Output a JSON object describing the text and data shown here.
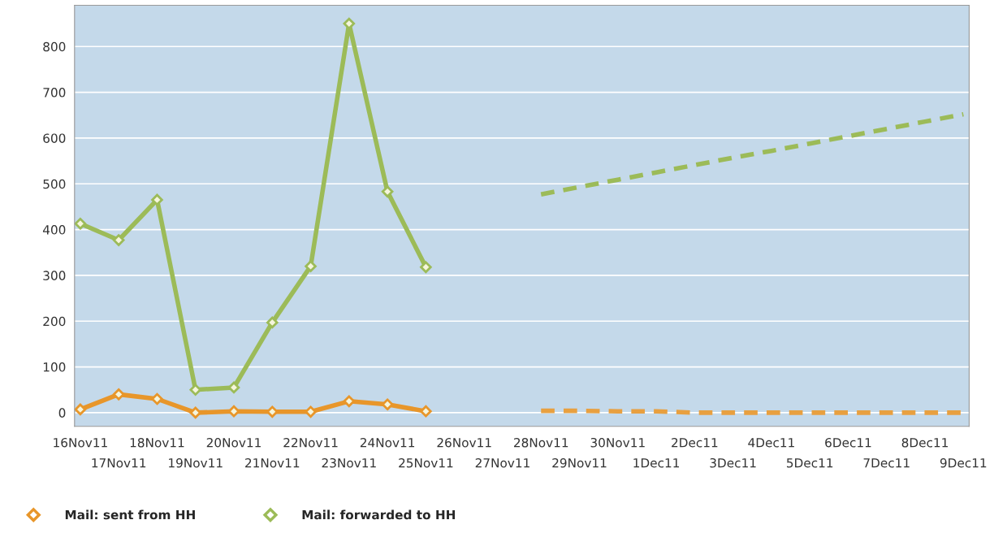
{
  "chart_data": {
    "type": "line",
    "categories": [
      "16Nov11",
      "17Nov11",
      "18Nov11",
      "19Nov11",
      "20Nov11",
      "21Nov11",
      "22Nov11",
      "23Nov11",
      "24Nov11",
      "25Nov11",
      "26Nov11",
      "27Nov11",
      "28Nov11",
      "29Nov11",
      "30Nov11",
      "1Dec11",
      "2Dec11",
      "3Dec11",
      "4Dec11",
      "5Dec11",
      "6Dec11",
      "7Dec11",
      "8Dec11",
      "9Dec11"
    ],
    "series": [
      {
        "name": "Mail: sent from HH",
        "color": "#e8962a",
        "marker": "diamond",
        "line_style": "solid",
        "values": [
          7,
          40,
          30,
          0,
          3,
          2,
          2,
          25,
          18,
          3,
          null,
          null,
          null,
          null,
          null,
          null,
          null,
          null,
          null,
          null,
          null,
          null,
          null,
          null
        ]
      },
      {
        "name": "Mail: forwarded to HH",
        "color": "#9cbb58",
        "marker": "diamond",
        "line_style": "solid",
        "values": [
          413,
          377,
          465,
          50,
          55,
          197,
          320,
          850,
          483,
          318,
          null,
          null,
          null,
          null,
          null,
          null,
          null,
          null,
          null,
          null,
          null,
          null,
          null,
          null
        ]
      },
      {
        "color": "#e8a040",
        "marker": "none",
        "line_style": "dashed",
        "values": [
          null,
          null,
          null,
          null,
          null,
          null,
          null,
          null,
          null,
          null,
          null,
          null,
          4,
          4,
          3,
          3,
          0,
          0,
          0,
          0,
          0,
          0,
          0,
          0
        ]
      },
      {
        "color": "#9cbb58",
        "marker": "none",
        "line_style": "dashed",
        "values": [
          null,
          null,
          null,
          null,
          null,
          null,
          null,
          null,
          null,
          null,
          null,
          null,
          477,
          493,
          509,
          525,
          541,
          557,
          572,
          588,
          604,
          620,
          636,
          652
        ]
      }
    ],
    "ylim": [
      -30,
      890
    ],
    "yticks": [
      0,
      100,
      200,
      300,
      400,
      500,
      600,
      700,
      800
    ],
    "grid": "y",
    "legend": "bottom"
  }
}
